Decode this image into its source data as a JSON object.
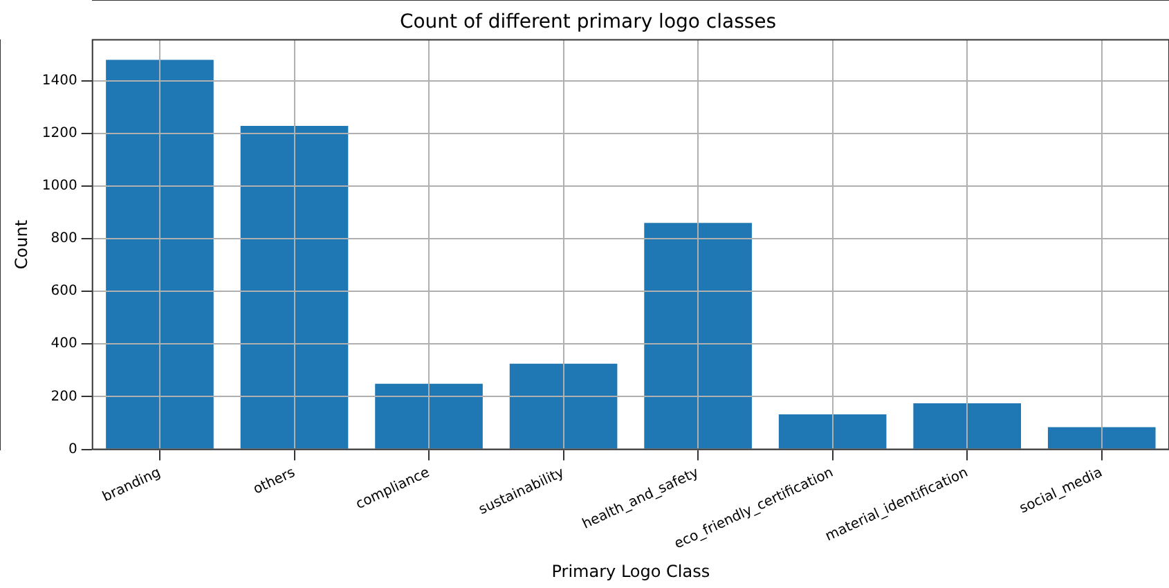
{
  "chart_data": {
    "type": "bar",
    "title": "Count of different primary logo classes",
    "xlabel": "Primary Logo Class",
    "ylabel": "Count",
    "categories": [
      "branding",
      "others",
      "compliance",
      "sustainability",
      "health_and_safety",
      "eco_friendly_certification",
      "material_identification",
      "social_media"
    ],
    "values": [
      1479,
      1228,
      249,
      325,
      860,
      133,
      175,
      84
    ],
    "color": "#1f77b4",
    "ylim": [
      0,
      1555
    ],
    "yticks": [
      0,
      200,
      400,
      600,
      800,
      1000,
      1200,
      1400
    ],
    "grid": true
  }
}
